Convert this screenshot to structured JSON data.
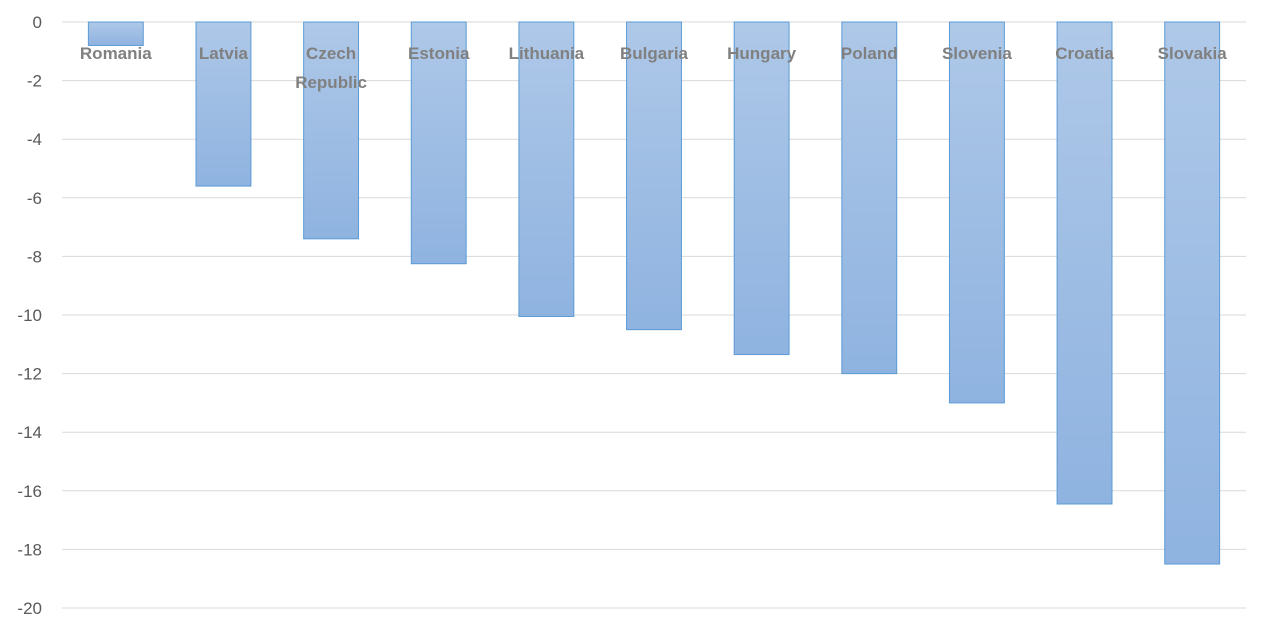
{
  "chart_data": {
    "type": "bar",
    "title": "",
    "xlabel": "",
    "ylabel": "",
    "categories": [
      [
        "Romania"
      ],
      [
        "Latvia"
      ],
      [
        "Czech",
        "Republic"
      ],
      [
        "Estonia"
      ],
      [
        "Lithuania"
      ],
      [
        "Bulgaria"
      ],
      [
        "Hungary"
      ],
      [
        "Poland"
      ],
      [
        "Slovenia"
      ],
      [
        "Croatia"
      ],
      [
        "Slovakia"
      ]
    ],
    "values": [
      -0.8,
      -5.6,
      -7.4,
      -8.25,
      -10.05,
      -10.5,
      -11.35,
      -12.0,
      -13.0,
      -16.45,
      -18.5
    ],
    "ylim": [
      -20,
      0
    ],
    "yticks": [
      0,
      -2,
      -4,
      -6,
      -8,
      -10,
      -12,
      -14,
      -16,
      -18,
      -20
    ],
    "grid": true,
    "legend": "none",
    "colors": {
      "bar_top": "#aec8e8",
      "bar_bottom": "#8fb3e0",
      "bar_stroke": "#5b9bd5",
      "grid": "#d9d9d9"
    }
  }
}
